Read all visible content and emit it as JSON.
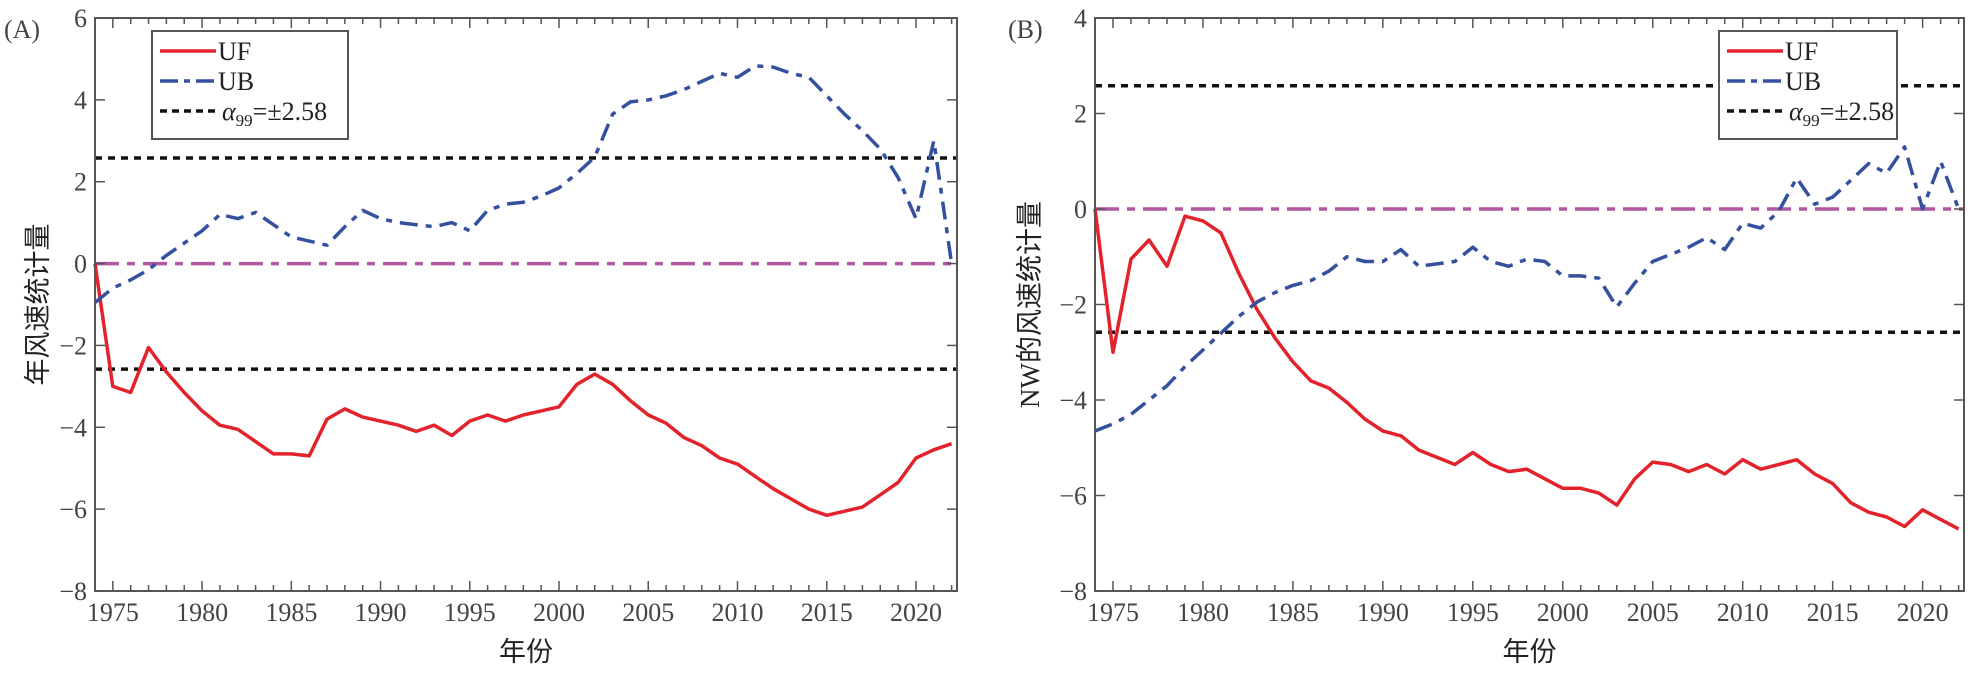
{
  "colors": {
    "uf": "#e3232b",
    "ub": "#34509f",
    "zero": "#b0579f",
    "threshold": "#111111",
    "axis": "#555555"
  },
  "chart_data": [
    {
      "type": "line",
      "panel_label": "(A)",
      "title": "",
      "xlabel": "年份",
      "ylabel": "年风速统计量",
      "xlim": [
        1974,
        2022.3
      ],
      "ylim": [
        -8,
        6
      ],
      "xticks": [
        1975,
        1980,
        1985,
        1990,
        1995,
        2000,
        2005,
        2010,
        2015,
        2020
      ],
      "yticks": [
        -8,
        -6,
        -4,
        -2,
        0,
        2,
        4,
        6
      ],
      "legend_position": "top-left",
      "legend": {
        "uf": "UF",
        "ub": "UB",
        "alpha_symbol": "α",
        "alpha_sub": "99",
        "alpha_text": "=±2.58"
      },
      "thresholds": [
        2.58,
        -2.58
      ],
      "zero_line": 0,
      "x_start": 1974,
      "series": [
        {
          "name": "UF",
          "values": [
            0,
            -3.0,
            -3.15,
            -2.05,
            -2.65,
            -3.15,
            -3.6,
            -3.95,
            -4.05,
            -4.35,
            -4.65,
            -4.65,
            -4.7,
            -3.8,
            -3.55,
            -3.75,
            -3.85,
            -3.95,
            -4.1,
            -3.95,
            -4.2,
            -3.85,
            -3.7,
            -3.85,
            -3.7,
            -3.6,
            -3.5,
            -2.95,
            -2.7,
            -2.95,
            -3.35,
            -3.7,
            -3.9,
            -4.25,
            -4.45,
            -4.75,
            -4.9,
            -5.2,
            -5.5,
            -5.75,
            -6.0,
            -6.15,
            -6.05,
            -5.95,
            -5.65,
            -5.35,
            -4.75,
            -4.55,
            -4.4
          ]
        },
        {
          "name": "UB",
          "values": [
            -0.95,
            -0.6,
            -0.4,
            -0.15,
            0.2,
            0.5,
            0.8,
            1.2,
            1.1,
            1.25,
            0.95,
            0.65,
            0.55,
            0.45,
            0.9,
            1.3,
            1.1,
            1.0,
            0.95,
            0.9,
            1.0,
            0.8,
            1.3,
            1.45,
            1.5,
            1.65,
            1.85,
            2.2,
            2.6,
            3.65,
            3.95,
            4.0,
            4.1,
            4.25,
            4.45,
            4.65,
            4.55,
            4.83,
            4.8,
            4.65,
            4.55,
            4.1,
            3.65,
            3.25,
            2.8,
            2.1,
            1.1,
            3.0,
            0
          ]
        }
      ]
    },
    {
      "type": "line",
      "panel_label": "(B)",
      "title": "",
      "xlabel": "年份",
      "ylabel": "NW的风速统计量",
      "xlim": [
        1974,
        2022.3
      ],
      "ylim": [
        -8,
        4
      ],
      "xticks": [
        1975,
        1980,
        1985,
        1990,
        1995,
        2000,
        2005,
        2010,
        2015,
        2020
      ],
      "yticks": [
        -8,
        -6,
        -4,
        -2,
        0,
        2,
        4
      ],
      "legend_position": "top-right",
      "legend": {
        "uf": "UF",
        "ub": "UB",
        "alpha_symbol": "α",
        "alpha_sub": "99",
        "alpha_text": "=±2.58"
      },
      "thresholds": [
        2.58,
        -2.58
      ],
      "zero_line": 0,
      "x_start": 1974,
      "series": [
        {
          "name": "UF",
          "values": [
            0,
            -3.0,
            -1.05,
            -0.65,
            -1.2,
            -0.15,
            -0.25,
            -0.5,
            -1.35,
            -2.1,
            -2.7,
            -3.2,
            -3.6,
            -3.75,
            -4.05,
            -4.4,
            -4.65,
            -4.75,
            -5.05,
            -5.2,
            -5.35,
            -5.1,
            -5.35,
            -5.5,
            -5.45,
            -5.65,
            -5.85,
            -5.85,
            -5.95,
            -6.2,
            -5.65,
            -5.3,
            -5.35,
            -5.5,
            -5.35,
            -5.55,
            -5.25,
            -5.45,
            -5.35,
            -5.25,
            -5.55,
            -5.75,
            -6.15,
            -6.35,
            -6.45,
            -6.65,
            -6.3,
            -6.5,
            -6.7
          ]
        },
        {
          "name": "UB",
          "values": [
            -4.65,
            -4.5,
            -4.3,
            -4.0,
            -3.7,
            -3.3,
            -2.95,
            -2.6,
            -2.25,
            -1.95,
            -1.75,
            -1.6,
            -1.5,
            -1.3,
            -1.0,
            -1.1,
            -1.1,
            -0.85,
            -1.2,
            -1.15,
            -1.1,
            -0.8,
            -1.1,
            -1.2,
            -1.05,
            -1.1,
            -1.4,
            -1.4,
            -1.45,
            -2.05,
            -1.55,
            -1.1,
            -0.95,
            -0.8,
            -0.6,
            -0.85,
            -0.3,
            -0.4,
            -0.05,
            0.65,
            0.1,
            0.25,
            0.6,
            0.95,
            0.75,
            1.3,
            0.0,
            1.0,
            0
          ]
        }
      ]
    }
  ]
}
